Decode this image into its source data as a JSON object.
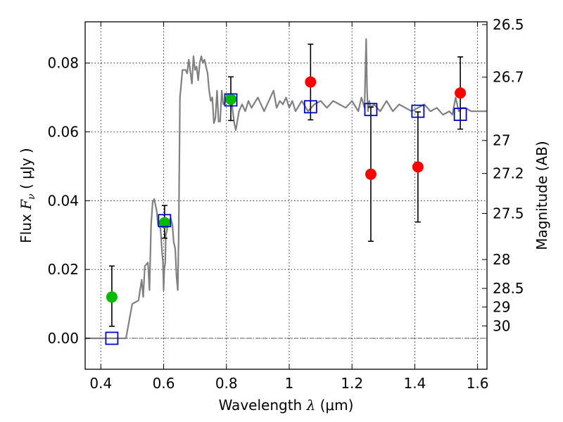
{
  "chart_data": {
    "type": "scatter",
    "xlabel_prefix": "Wavelength  ",
    "xlabel_lambda": "λ",
    "xlabel_unit": " (μm)",
    "ylabel_prefix": "Flux  ",
    "ylabel_symbol": "F",
    "ylabel_sub": "ν",
    "ylabel_unit": "  ( μJy )",
    "ylabel_right": "Magnitude (AB)",
    "xlim": [
      0.35,
      1.63
    ],
    "ylim": [
      -0.009,
      0.092
    ],
    "grid": true,
    "x_ticks": [
      {
        "value": 0.4,
        "label": "0.4"
      },
      {
        "value": 0.6,
        "label": "0.6"
      },
      {
        "value": 0.8,
        "label": "0.8"
      },
      {
        "value": 1.0,
        "label": "1"
      },
      {
        "value": 1.2,
        "label": "1.2"
      },
      {
        "value": 1.4,
        "label": "1.4"
      },
      {
        "value": 1.6,
        "label": "1.6"
      }
    ],
    "y_ticks": [
      {
        "value": 0.0,
        "label": "0.00"
      },
      {
        "value": 0.02,
        "label": "0.02"
      },
      {
        "value": 0.04,
        "label": "0.04"
      },
      {
        "value": 0.06,
        "label": "0.06"
      },
      {
        "value": 0.08,
        "label": "0.08"
      }
    ],
    "right_ticks": [
      {
        "flux": 0.0912,
        "label": "26.5"
      },
      {
        "flux": 0.0759,
        "label": "26.7"
      },
      {
        "flux": 0.0575,
        "label": "27"
      },
      {
        "flux": 0.0479,
        "label": "27.2"
      },
      {
        "flux": 0.0363,
        "label": "27.5"
      },
      {
        "flux": 0.0229,
        "label": "28"
      },
      {
        "flux": 0.0145,
        "label": "28.5"
      },
      {
        "flux": 0.0091,
        "label": "29"
      },
      {
        "flux": 0.0036,
        "label": "30"
      }
    ],
    "spectrum": {
      "name": "model spectrum",
      "color": "#808080",
      "x": [
        0.35,
        0.46,
        0.48,
        0.5,
        0.52,
        0.53,
        0.535,
        0.54,
        0.55,
        0.555,
        0.56,
        0.565,
        0.57,
        0.578,
        0.582,
        0.59,
        0.595,
        0.598,
        0.6,
        0.602,
        0.605,
        0.607,
        0.612,
        0.618,
        0.622,
        0.628,
        0.632,
        0.637,
        0.641,
        0.645,
        0.648,
        0.652,
        0.66,
        0.67,
        0.675,
        0.68,
        0.69,
        0.695,
        0.7,
        0.705,
        0.71,
        0.715,
        0.72,
        0.725,
        0.73,
        0.74,
        0.745,
        0.75,
        0.755,
        0.76,
        0.765,
        0.77,
        0.775,
        0.78,
        0.785,
        0.79,
        0.8,
        0.81,
        0.815,
        0.82,
        0.825,
        0.83,
        0.84,
        0.85,
        0.86,
        0.87,
        0.88,
        0.9,
        0.92,
        0.94,
        0.95,
        0.96,
        0.97,
        0.98,
        0.99,
        1.0,
        1.01,
        1.02,
        1.04,
        1.06,
        1.08,
        1.1,
        1.12,
        1.14,
        1.16,
        1.18,
        1.2,
        1.22,
        1.23,
        1.24,
        1.245,
        1.248,
        1.251,
        1.255,
        1.26,
        1.27,
        1.29,
        1.31,
        1.33,
        1.35,
        1.37,
        1.39,
        1.41,
        1.43,
        1.45,
        1.47,
        1.49,
        1.51,
        1.52,
        1.53,
        1.54,
        1.55,
        1.56,
        1.58,
        1.6,
        1.63
      ],
      "y": [
        0.0,
        0.0,
        0.0,
        0.01,
        0.011,
        0.017,
        0.012,
        0.021,
        0.022,
        0.014,
        0.033,
        0.0395,
        0.0405,
        0.037,
        0.033,
        0.032,
        0.025,
        0.022,
        0.014,
        0.02,
        0.022,
        0.03,
        0.032,
        0.034,
        0.035,
        0.033,
        0.028,
        0.026,
        0.018,
        0.014,
        0.03,
        0.07,
        0.078,
        0.078,
        0.077,
        0.081,
        0.074,
        0.082,
        0.078,
        0.079,
        0.075,
        0.08,
        0.082,
        0.08,
        0.081,
        0.077,
        0.072,
        0.069,
        0.07,
        0.0625,
        0.064,
        0.072,
        0.063,
        0.063,
        0.072,
        0.068,
        0.069,
        0.07,
        0.071,
        0.066,
        0.0625,
        0.0605,
        0.066,
        0.068,
        0.066,
        0.069,
        0.067,
        0.07,
        0.066,
        0.07,
        0.072,
        0.067,
        0.069,
        0.068,
        0.07,
        0.067,
        0.069,
        0.066,
        0.069,
        0.066,
        0.068,
        0.069,
        0.067,
        0.069,
        0.068,
        0.067,
        0.069,
        0.066,
        0.07,
        0.067,
        0.087,
        0.072,
        0.066,
        0.069,
        0.067,
        0.068,
        0.066,
        0.069,
        0.066,
        0.068,
        0.067,
        0.066,
        0.067,
        0.068,
        0.066,
        0.067,
        0.065,
        0.066,
        0.065,
        0.07,
        0.066,
        0.067,
        0.067,
        0.066,
        0.066,
        0.066
      ]
    },
    "observed": {
      "name": "observed photometry",
      "points": [
        {
          "x": 0.435,
          "y": 0.012,
          "err_low": 0.0085,
          "err_high": 0.009,
          "color": "#00bb00"
        },
        {
          "x": 0.603,
          "y": 0.0336,
          "err_low": 0.0045,
          "err_high": 0.005,
          "color": "#00bb00"
        },
        {
          "x": 0.814,
          "y": 0.0695,
          "err_low": 0.0062,
          "err_high": 0.0065,
          "color": "#00bb00"
        },
        {
          "x": 1.068,
          "y": 0.0745,
          "err_low": 0.011,
          "err_high": 0.011,
          "color": "#ff0000"
        },
        {
          "x": 1.26,
          "y": 0.0477,
          "err_low": 0.0195,
          "err_high": 0.0195,
          "color": "#ff0000"
        },
        {
          "x": 1.41,
          "y": 0.0498,
          "err_low": 0.016,
          "err_high": 0.016,
          "color": "#ff0000"
        },
        {
          "x": 1.545,
          "y": 0.0713,
          "err_low": 0.0105,
          "err_high": 0.0105,
          "color": "#ff0000"
        }
      ]
    },
    "model_photometry": {
      "name": "model photometry",
      "color": "#0000cc",
      "x": [
        0.435,
        0.603,
        0.814,
        1.068,
        1.26,
        1.41,
        1.545
      ],
      "y": [
        0.0,
        0.0342,
        0.0693,
        0.0673,
        0.0665,
        0.066,
        0.0651
      ]
    }
  }
}
